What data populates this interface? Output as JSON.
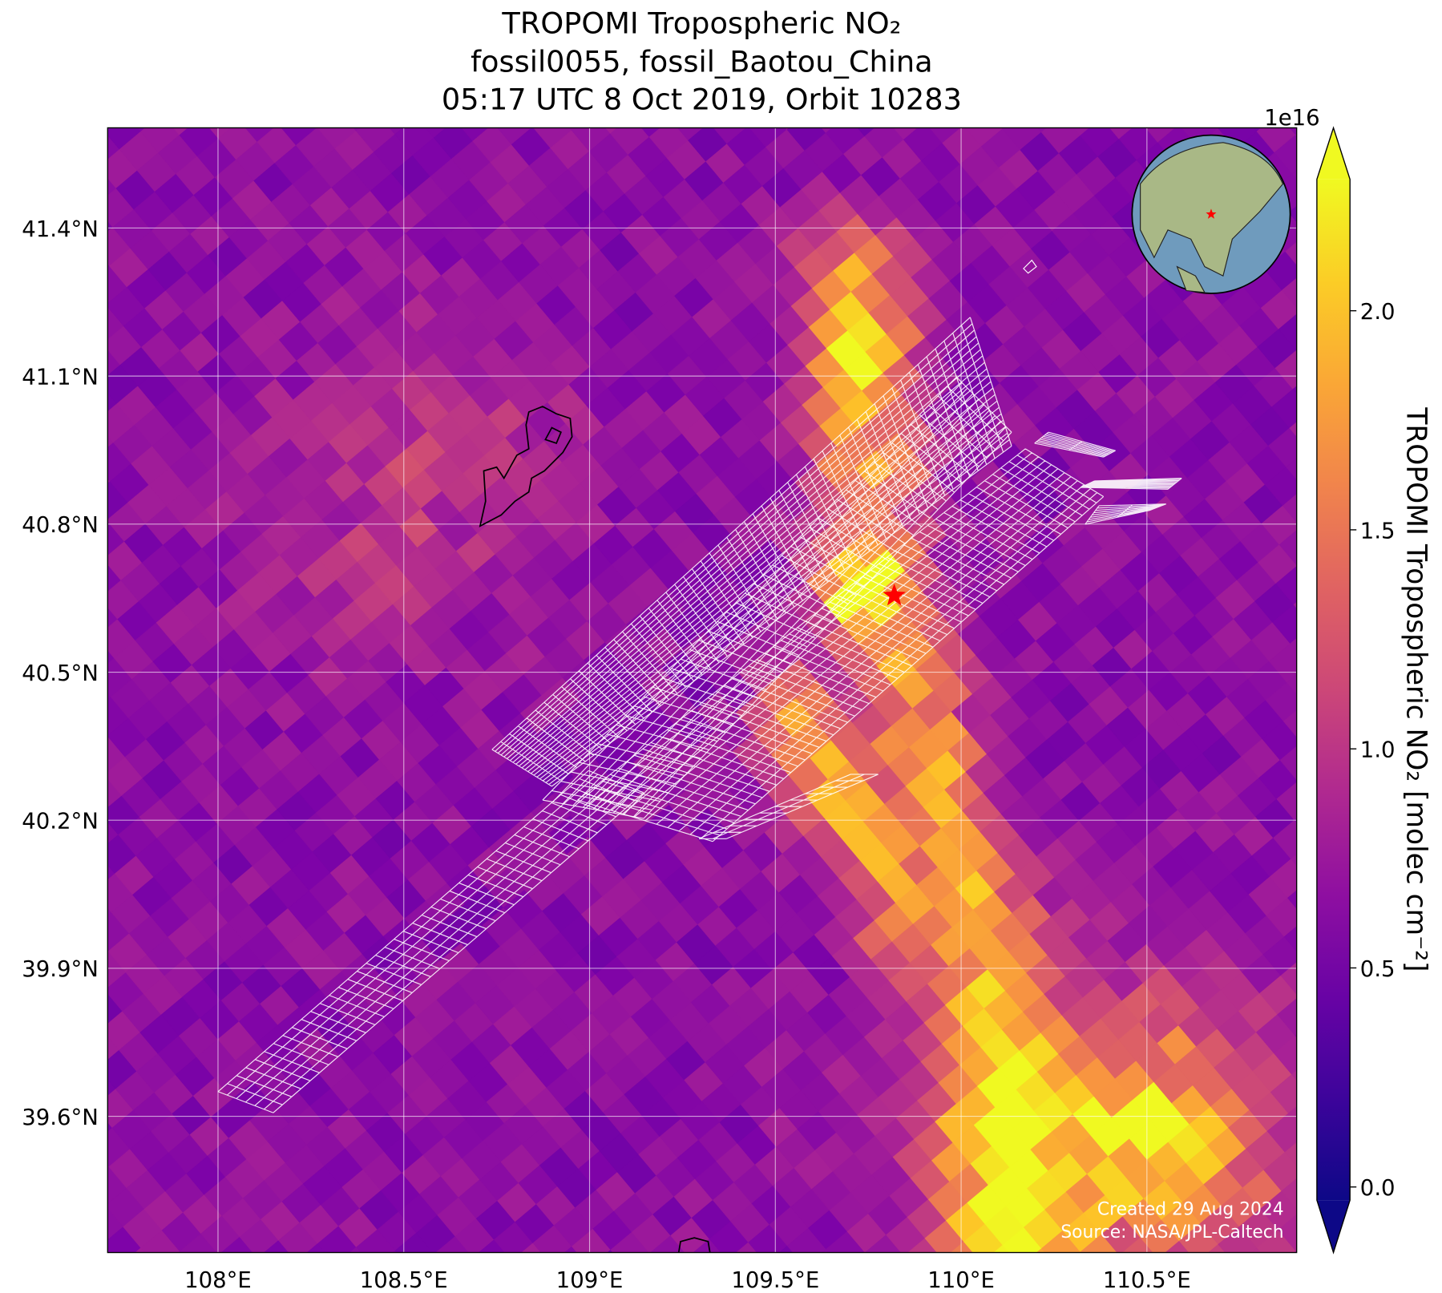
{
  "chart_data": {
    "type": "map",
    "title": [
      "TROPOMI Tropospheric NO₂",
      "fossil0055, fossil_Baotou_China",
      "05:17 UTC 8 Oct 2019, Orbit 10283"
    ],
    "xlim": [
      107.703,
      110.903
    ],
    "ylim": [
      39.324,
      41.603
    ],
    "xticks": [
      {
        "value": 108,
        "label": "108°E"
      },
      {
        "value": 108.5,
        "label": "108.5°E"
      },
      {
        "value": 109,
        "label": "109°E"
      },
      {
        "value": 109.5,
        "label": "109.5°E"
      },
      {
        "value": 110,
        "label": "110°E"
      },
      {
        "value": 110.5,
        "label": "110.5°E"
      }
    ],
    "yticks": [
      {
        "value": 39.6,
        "label": "39.6°N"
      },
      {
        "value": 39.9,
        "label": "39.9°N"
      },
      {
        "value": 40.2,
        "label": "40.2°N"
      },
      {
        "value": 40.5,
        "label": "40.5°N"
      },
      {
        "value": 40.8,
        "label": "40.8°N"
      },
      {
        "value": 41.1,
        "label": "41.1°N"
      },
      {
        "value": 41.4,
        "label": "41.4°N"
      }
    ],
    "grid": true,
    "colorbar": {
      "label": "TROPOMI Tropospheric NO₂ [molec cm⁻²]",
      "offset_label": "1e16",
      "lim": [
        -0.03,
        2.3
      ],
      "ticks": [
        {
          "value": 0,
          "label": "0.0"
        },
        {
          "value": 0.5,
          "label": "0.5"
        },
        {
          "value": 1,
          "label": "1.0"
        },
        {
          "value": 1.5,
          "label": "1.5"
        },
        {
          "value": 2,
          "label": "2.0"
        }
      ],
      "colormap": "plasma"
    },
    "site": {
      "lon": 109.82,
      "lat": 40.655,
      "color": "#ff0000"
    },
    "annotations": [
      "Created 29 Aug 2024",
      "Source: NASA/JPL-Caltech"
    ]
  }
}
